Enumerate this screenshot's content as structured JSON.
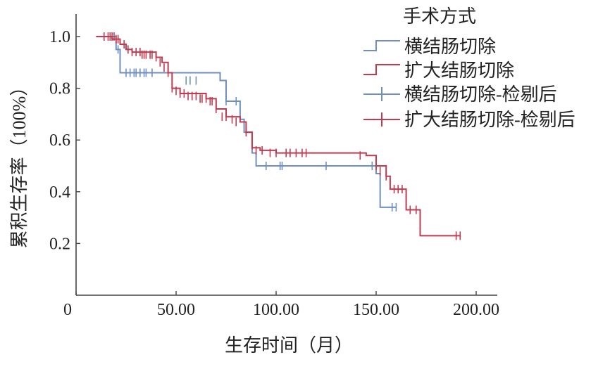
{
  "chart_data": {
    "type": "line",
    "subtype": "kaplan-meier",
    "xlabel": "生存时间（月）",
    "ylabel": "累积生存率（100%）",
    "xlim": [
      0,
      200
    ],
    "ylim": [
      0,
      1.05
    ],
    "x_ticks": [
      {
        "value": 0,
        "label": "0"
      },
      {
        "value": 50,
        "label": "50.00"
      },
      {
        "value": 100,
        "label": "100.00"
      },
      {
        "value": 150,
        "label": "150.00"
      },
      {
        "value": 200,
        "label": "200.00"
      }
    ],
    "y_ticks": [
      {
        "value": 0.2,
        "label": "0.2"
      },
      {
        "value": 0.4,
        "label": "0.4"
      },
      {
        "value": 0.6,
        "label": "0.6"
      },
      {
        "value": 0.8,
        "label": "0.8"
      },
      {
        "value": 1.0,
        "label": "1.0"
      }
    ],
    "grid": false,
    "legend": {
      "title": "手术方式",
      "placement": "top-right",
      "entries": [
        {
          "label": "横结肠切除",
          "series": 0,
          "kind": "step"
        },
        {
          "label": "扩大结肠切除",
          "series": 1,
          "kind": "step"
        },
        {
          "label": "横结肠切除-检剔后",
          "series": 0,
          "kind": "censor"
        },
        {
          "label": "扩大结肠切除-检剔后",
          "series": 1,
          "kind": "censor"
        }
      ]
    },
    "series": [
      {
        "color": "#6f8fc4",
        "steps": [
          [
            10,
            1.0
          ],
          [
            20,
            0.95
          ],
          [
            22,
            0.86
          ],
          [
            72,
            0.83
          ],
          [
            75,
            0.75
          ],
          [
            82,
            0.68
          ],
          [
            84,
            0.63
          ],
          [
            88,
            0.55
          ],
          [
            90,
            0.5
          ],
          [
            150,
            0.47
          ],
          [
            152,
            0.34
          ],
          [
            160,
            0.34
          ]
        ],
        "censored": [
          [
            21,
            0.95
          ],
          [
            25,
            0.86
          ],
          [
            27,
            0.86
          ],
          [
            29,
            0.86
          ],
          [
            30,
            0.86
          ],
          [
            32,
            0.86
          ],
          [
            34,
            0.86
          ],
          [
            35,
            0.86
          ],
          [
            38,
            0.86
          ],
          [
            55,
            0.83
          ],
          [
            57,
            0.83
          ],
          [
            60,
            0.83
          ],
          [
            75,
            0.75
          ],
          [
            80,
            0.75
          ],
          [
            85,
            0.63
          ],
          [
            95,
            0.5
          ],
          [
            102,
            0.5
          ],
          [
            103,
            0.5
          ],
          [
            125,
            0.5
          ],
          [
            148,
            0.5
          ],
          [
            158,
            0.34
          ],
          [
            160,
            0.34
          ]
        ]
      },
      {
        "color": "#c23a4f",
        "steps": [
          [
            10,
            1.0
          ],
          [
            18,
            0.99
          ],
          [
            22,
            0.97
          ],
          [
            25,
            0.95
          ],
          [
            28,
            0.94
          ],
          [
            40,
            0.92
          ],
          [
            43,
            0.9
          ],
          [
            46,
            0.86
          ],
          [
            48,
            0.8
          ],
          [
            52,
            0.78
          ],
          [
            65,
            0.76
          ],
          [
            70,
            0.72
          ],
          [
            75,
            0.69
          ],
          [
            82,
            0.67
          ],
          [
            85,
            0.63
          ],
          [
            88,
            0.57
          ],
          [
            92,
            0.56
          ],
          [
            100,
            0.55
          ],
          [
            145,
            0.54
          ],
          [
            150,
            0.5
          ],
          [
            155,
            0.46
          ],
          [
            157,
            0.41
          ],
          [
            165,
            0.33
          ],
          [
            172,
            0.23
          ],
          [
            192,
            0.23
          ]
        ],
        "censored": [
          [
            14,
            1.0
          ],
          [
            16,
            1.0
          ],
          [
            17,
            1.0
          ],
          [
            18,
            1.0
          ],
          [
            19,
            1.0
          ],
          [
            20,
            0.99
          ],
          [
            21,
            0.99
          ],
          [
            24,
            0.97
          ],
          [
            26,
            0.95
          ],
          [
            28,
            0.94
          ],
          [
            30,
            0.94
          ],
          [
            32,
            0.94
          ],
          [
            33,
            0.93
          ],
          [
            34,
            0.93
          ],
          [
            35,
            0.93
          ],
          [
            37,
            0.93
          ],
          [
            38,
            0.93
          ],
          [
            40,
            0.92
          ],
          [
            42,
            0.9
          ],
          [
            44,
            0.88
          ],
          [
            46,
            0.86
          ],
          [
            48,
            0.8
          ],
          [
            50,
            0.79
          ],
          [
            52,
            0.78
          ],
          [
            54,
            0.78
          ],
          [
            56,
            0.77
          ],
          [
            58,
            0.77
          ],
          [
            60,
            0.77
          ],
          [
            62,
            0.76
          ],
          [
            63,
            0.76
          ],
          [
            65,
            0.76
          ],
          [
            67,
            0.75
          ],
          [
            68,
            0.75
          ],
          [
            70,
            0.72
          ],
          [
            73,
            0.69
          ],
          [
            75,
            0.69
          ],
          [
            78,
            0.68
          ],
          [
            80,
            0.67
          ],
          [
            85,
            0.63
          ],
          [
            88,
            0.58
          ],
          [
            90,
            0.56
          ],
          [
            93,
            0.56
          ],
          [
            97,
            0.55
          ],
          [
            100,
            0.55
          ],
          [
            105,
            0.55
          ],
          [
            107,
            0.55
          ],
          [
            110,
            0.55
          ],
          [
            113,
            0.55
          ],
          [
            115,
            0.55
          ],
          [
            142,
            0.54
          ],
          [
            150,
            0.5
          ],
          [
            152,
            0.48
          ],
          [
            155,
            0.46
          ],
          [
            157,
            0.43
          ],
          [
            159,
            0.41
          ],
          [
            161,
            0.41
          ],
          [
            163,
            0.41
          ],
          [
            167,
            0.33
          ],
          [
            170,
            0.33
          ],
          [
            190,
            0.23
          ],
          [
            192,
            0.23
          ]
        ]
      }
    ]
  }
}
